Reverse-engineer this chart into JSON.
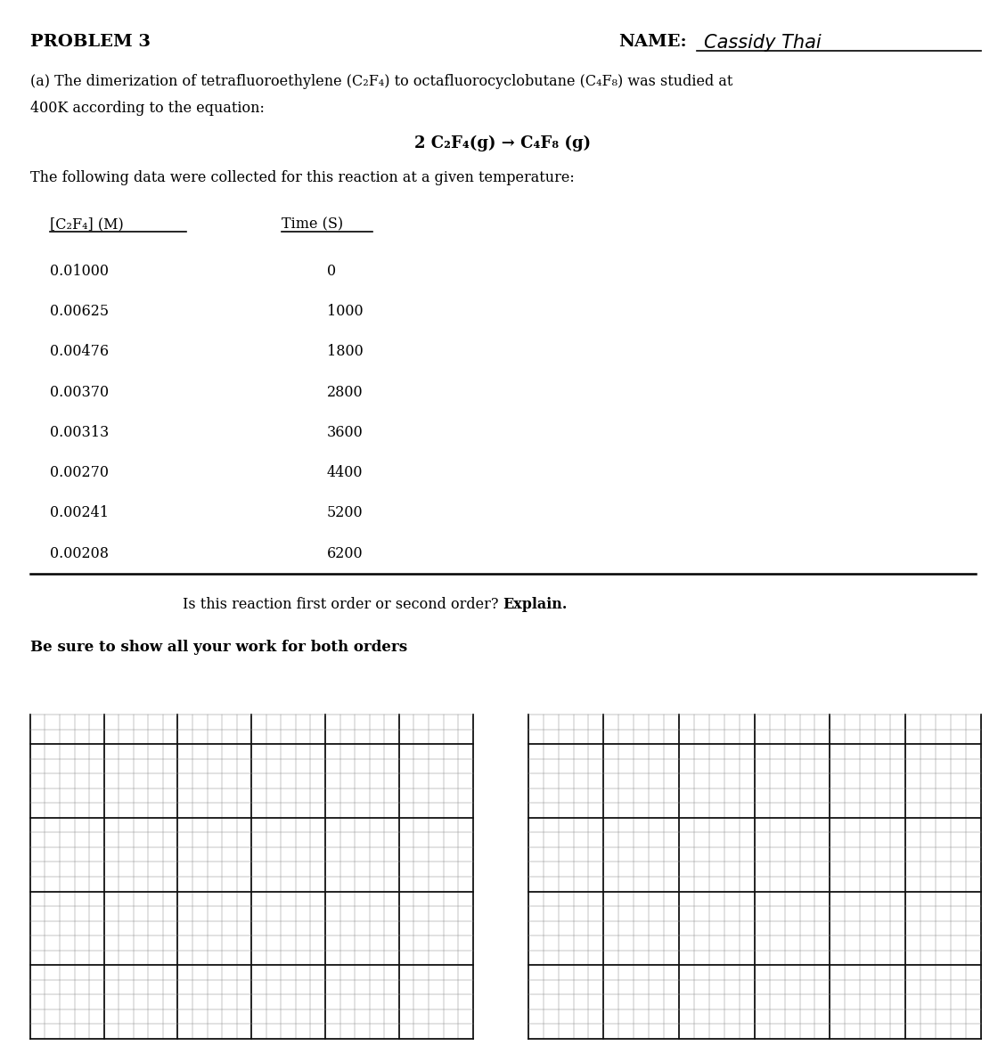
{
  "title": "PROBLEM 3",
  "name_label": "NAME:",
  "name_value": "Cassidy Thai",
  "paragraph_line1": "(a) The dimerization of tetrafluoroethylene (C₂F₄) to octafluorocyclobutane (C₄F₈) was studied at",
  "paragraph_line2": "400K according to the equation:",
  "equation": "2 C₂F₄(g) → C₄F₈ (g)",
  "table_intro": "The following data were collected for this reaction at a given temperature:",
  "col1_header": "[C₂F₄] (M)",
  "col2_header": "Time (S)",
  "concentrations": [
    "0.01000",
    "0.00625",
    "0.00476",
    "0.00370",
    "0.00313",
    "0.00270",
    "0.00241",
    "0.00208"
  ],
  "times": [
    "0",
    "1000",
    "1800",
    "2800",
    "3600",
    "4400",
    "5200",
    "6200"
  ],
  "question_normal": "Is this reaction first order or second order? ",
  "question_bold": "Explain.",
  "instruction": "Be sure to show all your work for both orders",
  "bg_color": "#ffffff",
  "text_color": "#000000",
  "grid_minor_color": "#888888",
  "grid_major_color": "#111111"
}
